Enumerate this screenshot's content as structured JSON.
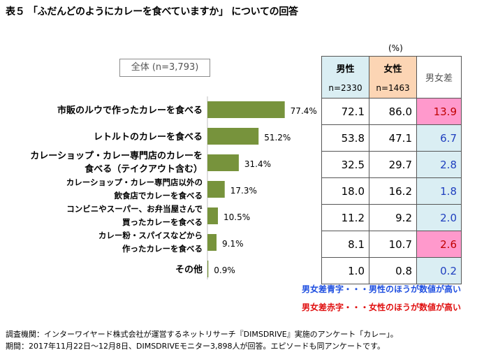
{
  "title": "表５ 「ふだんどのようにカレーを食べていますか」 についての回答",
  "overall_label": "全体 (n=3,793)",
  "unit": "(%)",
  "table_headers": {
    "male": "男性",
    "male_n": "n=2330",
    "female": "女性",
    "female_n": "n=1463",
    "diff": "男女差"
  },
  "chart_data": {
    "type": "bar",
    "orientation": "horizontal",
    "title": "全体 (n=3,793)",
    "categories": [
      [
        "市販のルウで作ったカレーを食べる"
      ],
      [
        "レトルトのカレーを食べる"
      ],
      [
        "カレーショップ・カレー専門店のカレーを",
        "食べる（テイクアウト含む）"
      ],
      [
        "カレーショップ・カレー専門店以外の",
        "飲食店でカレーを食べる"
      ],
      [
        "コンビニやスーパー、お弁当屋さんで",
        "買ったカレーを食べる"
      ],
      [
        "カレー粉・スパイスなどから",
        "作ったカレーを食べる"
      ],
      [
        "その他"
      ]
    ],
    "values": [
      77.4,
      51.2,
      31.4,
      17.3,
      10.5,
      9.1,
      0.9
    ],
    "value_labels": [
      "77.4%",
      "51.2%",
      "31.4%",
      "17.3%",
      "10.5%",
      "9.1%",
      "0.9%"
    ],
    "bar_color": "#77933c",
    "xlim": [
      0,
      100
    ]
  },
  "rows": [
    {
      "male": "72.1",
      "female": "86.0",
      "diff": "13.9",
      "diff_color": "red"
    },
    {
      "male": "53.8",
      "female": "47.1",
      "diff": "6.7",
      "diff_color": "blue"
    },
    {
      "male": "32.5",
      "female": "29.7",
      "diff": "2.8",
      "diff_color": "blue"
    },
    {
      "male": "18.0",
      "female": "16.2",
      "diff": "1.8",
      "diff_color": "blue"
    },
    {
      "male": "11.2",
      "female": "9.2",
      "diff": "2.0",
      "diff_color": "blue"
    },
    {
      "male": "8.1",
      "female": "10.7",
      "diff": "2.6",
      "diff_color": "red"
    },
    {
      "male": "1.0",
      "female": "0.8",
      "diff": "0.2",
      "diff_color": "blue"
    }
  ],
  "legend": {
    "blue": "男女差青字・・・男性のほうが数値が高い",
    "red": "男女差赤字・・・女性のほうが数値が高い"
  },
  "footnote": {
    "line1": "調査機関：インターワイヤード株式会社が運営するネットリサーチ『DIMSDRIVE』実施のアンケート「カレー」。",
    "line2": "期間：2017年11月22日～12月8日、DIMSDRIVEモニター3,898人が回答。エピソードも同アンケートです。"
  }
}
